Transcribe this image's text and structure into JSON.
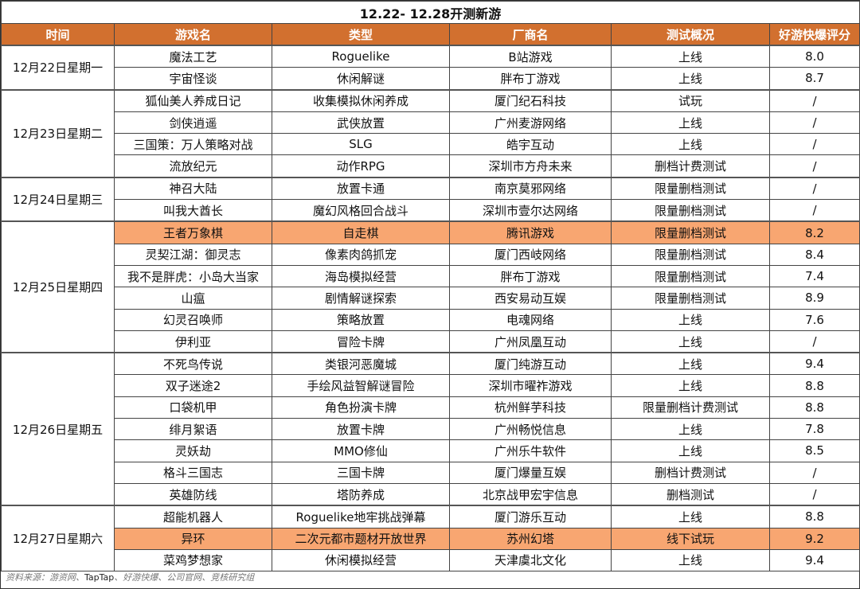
{
  "title": "12.22- 12.28开测新游",
  "colors": {
    "header_bg": "#D2702F",
    "highlight_bg": "#F8A671"
  },
  "headers": [
    "时间",
    "游戏名",
    "类型",
    "厂商名",
    "测试概况",
    "好游快爆评分"
  ],
  "groups": [
    {
      "date": "12月22日星期一",
      "rows": [
        {
          "game": "魔法工艺",
          "type": "Roguelike",
          "vendor": "B站游戏",
          "status": "上线",
          "score": "8.0"
        },
        {
          "game": "宇宙怪谈",
          "type": "休闲解谜",
          "vendor": "胖布丁游戏",
          "status": "上线",
          "score": "8.7"
        }
      ]
    },
    {
      "date": "12月23日星期二",
      "rows": [
        {
          "game": "狐仙美人养成日记",
          "type": "收集模拟休闲养成",
          "vendor": "厦门纪石科技",
          "status": "试玩",
          "score": "/"
        },
        {
          "game": "剑侠逍遥",
          "type": "武侠放置",
          "vendor": "广州麦游网络",
          "status": "上线",
          "score": "/"
        },
        {
          "game": "三国策：万人策略对战",
          "type": "SLG",
          "vendor": "皓宇互动",
          "status": "上线",
          "score": "/"
        },
        {
          "game": "流放纪元",
          "type": "动作RPG",
          "vendor": "深圳市方舟未来",
          "status": "删档计费测试",
          "score": "/"
        }
      ]
    },
    {
      "date": "12月24日星期三",
      "rows": [
        {
          "game": "神召大陆",
          "type": "放置卡通",
          "vendor": "南京莫邪网络",
          "status": "限量删档测试",
          "score": "/"
        },
        {
          "game": "叫我大酋长",
          "type": "魔幻风格回合战斗",
          "vendor": "深圳市壹尔达网络",
          "status": "限量删档测试",
          "score": "/"
        }
      ]
    },
    {
      "date": "12月25日星期四",
      "rows": [
        {
          "game": "王者万象棋",
          "type": "自走棋",
          "vendor": "腾讯游戏",
          "status": "限量删档测试",
          "score": "8.2",
          "highlight": true
        },
        {
          "game": "灵契江湖：御灵志",
          "type": "像素肉鸽抓宠",
          "vendor": "厦门西岐网络",
          "status": "限量删档测试",
          "score": "8.4"
        },
        {
          "game": "我不是胖虎：小岛大当家",
          "type": "海岛模拟经营",
          "vendor": "胖布丁游戏",
          "status": "限量删档测试",
          "score": "7.4"
        },
        {
          "game": "山瘟",
          "type": "剧情解谜探索",
          "vendor": "西安易动互娱",
          "status": "限量删档测试",
          "score": "8.9"
        },
        {
          "game": "幻灵召唤师",
          "type": "策略放置",
          "vendor": "电魂网络",
          "status": "上线",
          "score": "7.6"
        },
        {
          "game": "伊利亚",
          "type": "冒险卡牌",
          "vendor": "广州凤凰互动",
          "status": "上线",
          "score": "/"
        }
      ]
    },
    {
      "date": "12月26日星期五",
      "rows": [
        {
          "game": "不死鸟传说",
          "type": "类银河恶魔城",
          "vendor": "厦门纯游互动",
          "status": "上线",
          "score": "9.4"
        },
        {
          "game": "双子迷途2",
          "type": "手绘风益智解谜冒险",
          "vendor": "深圳市曜祚游戏",
          "status": "上线",
          "score": "8.8"
        },
        {
          "game": "口袋机甲",
          "type": "角色扮演卡牌",
          "vendor": "杭州鲜芋科技",
          "status": "限量删档计费测试",
          "score": "8.8"
        },
        {
          "game": "绯月絮语",
          "type": "放置卡牌",
          "vendor": "广州畅悦信息",
          "status": "上线",
          "score": "7.8"
        },
        {
          "game": "灵妖劫",
          "type": "MMO修仙",
          "vendor": "广州乐牛软件",
          "status": "上线",
          "score": "8.5"
        },
        {
          "game": "格斗三国志",
          "type": "三国卡牌",
          "vendor": "厦门爆量互娱",
          "status": "删档计费测试",
          "score": "/"
        },
        {
          "game": "英雄防线",
          "type": "塔防养成",
          "vendor": "北京战甲宏宇信息",
          "status": "删档测试",
          "score": "/"
        }
      ]
    },
    {
      "date": "12月27日星期六",
      "rows": [
        {
          "game": "超能机器人",
          "type": "Roguelike地牢挑战弹幕",
          "vendor": "厦门游乐互动",
          "status": "上线",
          "score": "8.8"
        },
        {
          "game": "异环",
          "type": "二次元都市题材开放世界",
          "vendor": "苏州幻塔",
          "status": "线下试玩",
          "score": "9.2",
          "highlight": true
        },
        {
          "game": "菜鸡梦想家",
          "type": "休闲模拟经营",
          "vendor": "天津虞北文化",
          "status": "上线",
          "score": "9.4"
        }
      ]
    }
  ],
  "footer": {
    "prefix": "资料来源：游资网、",
    "taptap": "TapTap",
    "suffix": "、好游快爆、公司官网、竞核研究组"
  }
}
